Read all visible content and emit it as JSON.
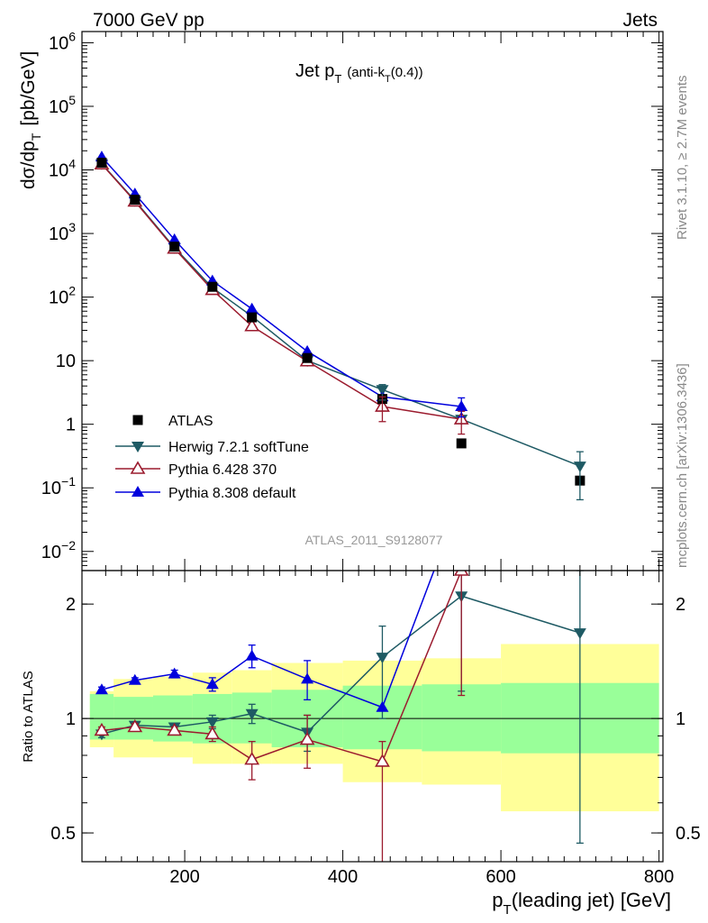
{
  "header": {
    "left": "7000 GeV pp",
    "right": "Jets"
  },
  "side": {
    "top": "Rivet 3.1.10, ≥ 2.7M events",
    "bottom": "mcplots.cern.ch [arXiv:1306.3436]"
  },
  "chart_data": [
    {
      "type": "scatter",
      "panel": "main",
      "title": "Jet p_T (anti-k_T(0.4))",
      "title_main": "Jet p",
      "title_sub": "T",
      "title_paren": "(anti-k",
      "title_paren_sub": "T",
      "title_paren_end": "(0.4))",
      "ylabel": "dσ/dp_T [pb/GeV]",
      "ylabel_main": "dσ/dp",
      "ylabel_sub": "T",
      "ylabel_unit": "[pb/GeV]",
      "yscale": "log",
      "ylim": [
        0.005,
        1500000
      ],
      "xlim": [
        70,
        805
      ],
      "watermark": "ATLAS_2011_S9128077",
      "legend_position": "lower-left",
      "y_tick_labels": [
        "10^-2",
        "10^-1",
        "1",
        "10",
        "10^2",
        "10^3",
        "10^4",
        "10^5",
        "10^6"
      ],
      "series": [
        {
          "name": "ATLAS",
          "color": "#000000",
          "marker": "square",
          "x": [
            95,
            137,
            187,
            235,
            285,
            355,
            450,
            550,
            700
          ],
          "y": [
            13000,
            3400,
            620,
            145,
            48,
            11,
            2.5,
            0.5,
            0.13
          ]
        },
        {
          "name": "Herwig 7.2.1 softTune",
          "color": "#1e5a64",
          "marker": "triangle-down",
          "x": [
            95,
            137,
            187,
            235,
            285,
            355,
            450,
            550,
            700
          ],
          "y": [
            12500,
            3300,
            600,
            140,
            50,
            10,
            3.5,
            1.2,
            0.22
          ]
        },
        {
          "name": "Pythia 6.428 370",
          "color": "#9b1b2e",
          "marker": "triangle-up-open",
          "x": [
            95,
            137,
            187,
            235,
            285,
            355,
            450,
            550
          ],
          "y": [
            12300,
            3200,
            580,
            130,
            35,
            9.8,
            1.9,
            1.2
          ]
        },
        {
          "name": "Pythia 8.308 default",
          "color": "#0000dd",
          "marker": "triangle-up",
          "x": [
            95,
            137,
            187,
            235,
            285,
            355,
            450,
            550
          ],
          "y": [
            16000,
            4200,
            800,
            180,
            65,
            14,
            2.7,
            1.9
          ]
        }
      ]
    },
    {
      "type": "line",
      "panel": "ratio",
      "ylabel": "Ratio to ATLAS",
      "yscale": "log",
      "ylim": [
        0.42,
        2.45
      ],
      "xlim": [
        70,
        805
      ],
      "xlabel": "p_T(leading jet) [GeV]",
      "xlabel_main": "p",
      "xlabel_sub": "T",
      "xlabel_rest": "(leading jet) [GeV]",
      "x_tick_labels": [
        "200",
        "400",
        "600",
        "800"
      ],
      "y_tick_labels": [
        "0.5",
        "1",
        "2"
      ],
      "uncertainty_bands": [
        {
          "x0": 80,
          "x1": 110,
          "inner": [
            0.88,
            1.16
          ],
          "outer": [
            0.84,
            1.18
          ]
        },
        {
          "x0": 110,
          "x1": 160,
          "inner": [
            0.88,
            1.14
          ],
          "outer": [
            0.79,
            1.27
          ]
        },
        {
          "x0": 160,
          "x1": 210,
          "inner": [
            0.87,
            1.15
          ],
          "outer": [
            0.79,
            1.29
          ]
        },
        {
          "x0": 210,
          "x1": 260,
          "inner": [
            0.86,
            1.16
          ],
          "outer": [
            0.76,
            1.32
          ]
        },
        {
          "x0": 260,
          "x1": 310,
          "inner": [
            0.86,
            1.17
          ],
          "outer": [
            0.76,
            1.34
          ]
        },
        {
          "x0": 310,
          "x1": 400,
          "inner": [
            0.84,
            1.19
          ],
          "outer": [
            0.76,
            1.4
          ]
        },
        {
          "x0": 400,
          "x1": 500,
          "inner": [
            0.83,
            1.22
          ],
          "outer": [
            0.68,
            1.42
          ]
        },
        {
          "x0": 500,
          "x1": 600,
          "inner": [
            0.82,
            1.23
          ],
          "outer": [
            0.67,
            1.44
          ]
        },
        {
          "x0": 600,
          "x1": 800,
          "inner": [
            0.81,
            1.24
          ],
          "outer": [
            0.57,
            1.57
          ]
        }
      ],
      "series": [
        {
          "name": "Herwig 7.2.1 softTune",
          "color": "#1e5a64",
          "marker": "triangle-down",
          "x": [
            95,
            137,
            187,
            235,
            285,
            355,
            450,
            550,
            700
          ],
          "y": [
            0.91,
            0.96,
            0.95,
            0.98,
            1.03,
            0.92,
            1.45,
            2.1,
            1.68
          ],
          "err_lo": [
            0.02,
            0.02,
            0.02,
            0.04,
            0.06,
            0.1,
            0.45,
            0.92,
            1.21
          ],
          "err_hi": [
            0.02,
            0.02,
            0.02,
            0.04,
            0.06,
            0.1,
            0.3,
            0.35,
            0.77
          ]
        },
        {
          "name": "Pythia 6.428 370",
          "color": "#9b1b2e",
          "marker": "triangle-up-open",
          "x": [
            95,
            137,
            187,
            235,
            285,
            355,
            450,
            550
          ],
          "y": [
            0.93,
            0.95,
            0.93,
            0.91,
            0.78,
            0.88,
            0.77,
            2.45
          ],
          "err_lo": [
            0.02,
            0.02,
            0.02,
            0.04,
            0.09,
            0.14,
            0.37,
            1.3
          ],
          "err_hi": [
            0.02,
            0.02,
            0.02,
            0.04,
            0.09,
            0.14,
            0.1,
            0.0
          ]
        },
        {
          "name": "Pythia 8.308 default",
          "color": "#0000dd",
          "marker": "triangle-up",
          "x": [
            95,
            137,
            187,
            235,
            285,
            355,
            450,
            550
          ],
          "y": [
            1.19,
            1.26,
            1.31,
            1.23,
            1.46,
            1.27,
            1.07,
            3.8
          ],
          "err_lo": [
            0.02,
            0.02,
            0.03,
            0.05,
            0.1,
            0.15,
            0.0,
            0.0
          ],
          "err_hi": [
            0.02,
            0.02,
            0.03,
            0.05,
            0.1,
            0.15,
            0.0,
            0.0
          ]
        }
      ]
    }
  ]
}
